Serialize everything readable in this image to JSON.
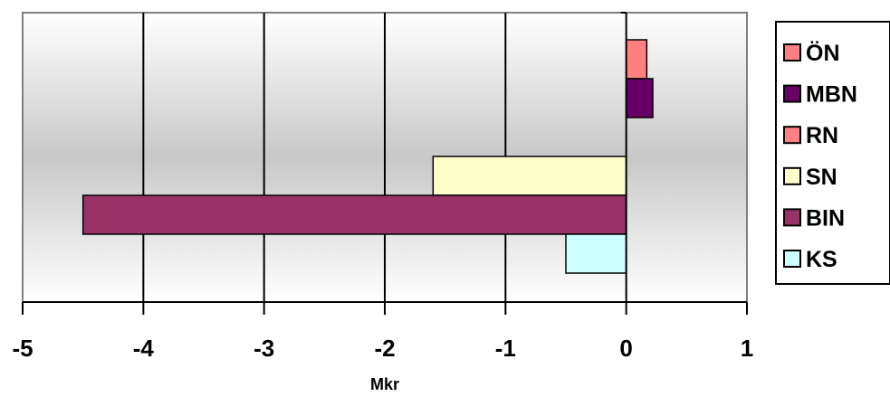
{
  "chart_data": {
    "type": "bar",
    "orientation": "horizontal",
    "xlabel": "Mkr",
    "ylabel": "",
    "xlim": [
      -5,
      1
    ],
    "x_ticks": [
      "-5",
      "-4",
      "-3",
      "-2",
      "-1",
      "0",
      "1"
    ],
    "grid": "vertical major gridlines",
    "legend_position": "right",
    "series": [
      {
        "name": "ÖN",
        "value": 0.17,
        "color": "#ff8080"
      },
      {
        "name": "MBN",
        "value": 0.22,
        "color": "#660066"
      },
      {
        "name": "RN",
        "value": 0.0,
        "color": "#ff8080"
      },
      {
        "name": "SN",
        "value": -1.6,
        "color": "#ffffcc"
      },
      {
        "name": "BIN",
        "value": -4.5,
        "color": "#993366"
      },
      {
        "name": "KS",
        "value": -0.5,
        "color": "#ccffff"
      }
    ]
  }
}
